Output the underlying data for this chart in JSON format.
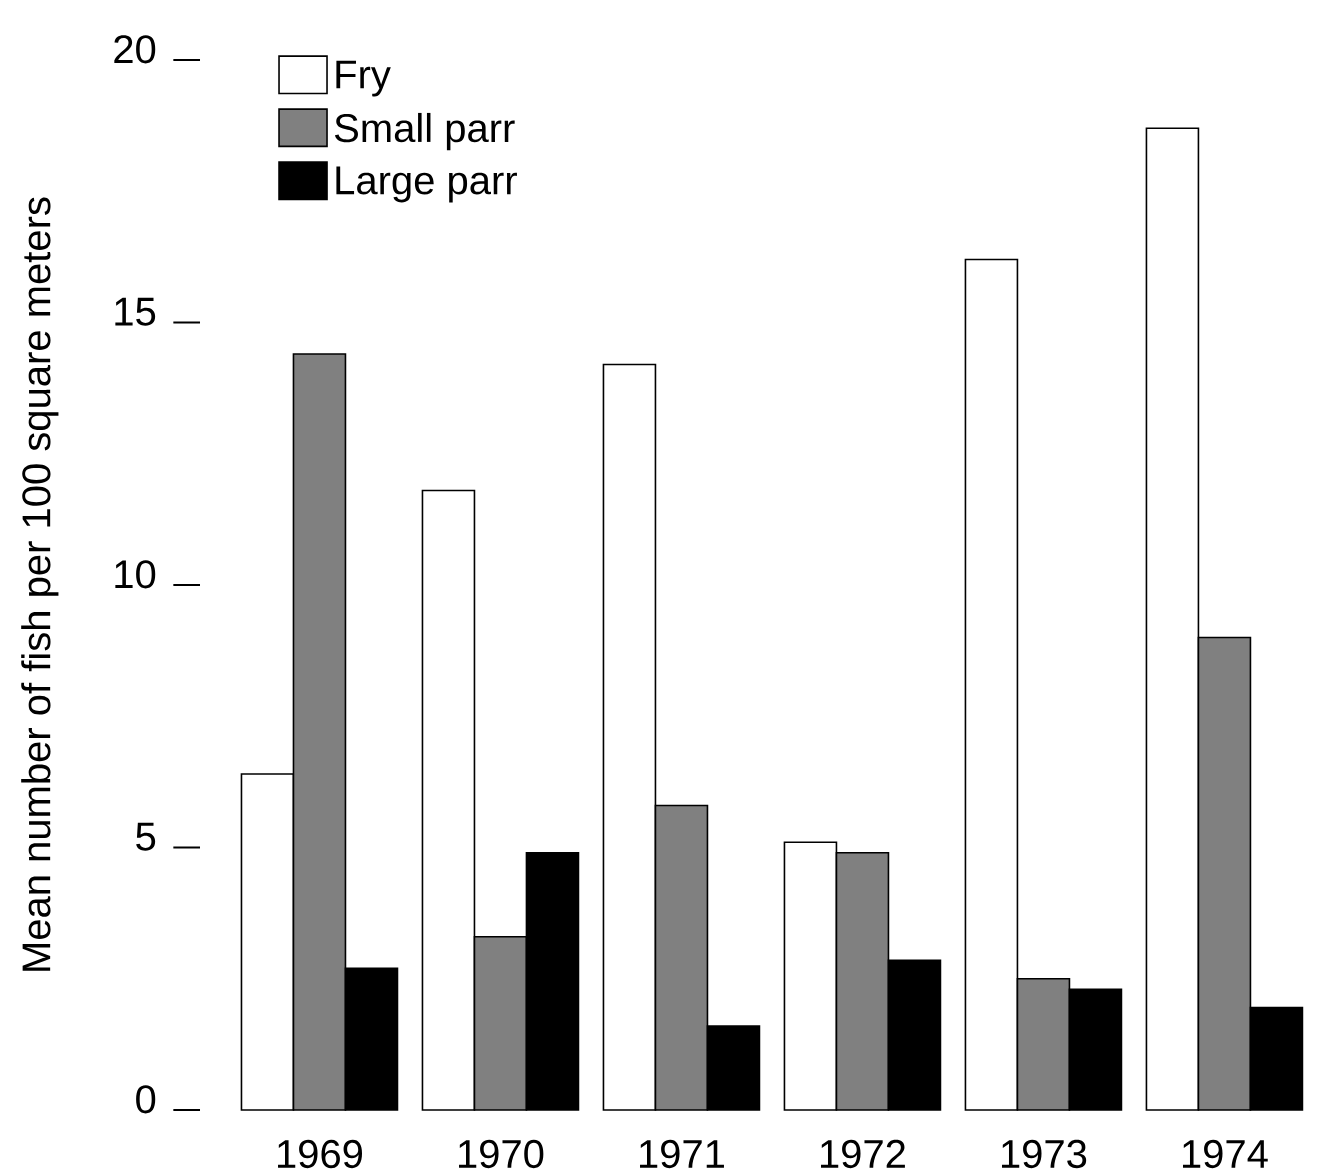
{
  "chart_data": {
    "type": "bar",
    "ylabel": "Mean number of fish per 100 square meters",
    "categories": [
      "1969",
      "1970",
      "1971",
      "1972",
      "1973",
      "1974"
    ],
    "series": [
      {
        "name": "Fry",
        "color": "#ffffff",
        "values": [
          6.4,
          11.8,
          14.2,
          5.1,
          16.2,
          18.7
        ]
      },
      {
        "name": "Small parr",
        "color": "#808080",
        "values": [
          14.4,
          3.3,
          5.8,
          4.9,
          2.5,
          9.0
        ]
      },
      {
        "name": "Large parr",
        "color": "#000000",
        "values": [
          2.7,
          4.9,
          1.6,
          2.85,
          2.3,
          1.95
        ]
      }
    ],
    "ylim": [
      0,
      20
    ],
    "yticks": [
      0,
      5,
      10,
      15,
      20
    ],
    "grid": false,
    "legend": "top left"
  }
}
